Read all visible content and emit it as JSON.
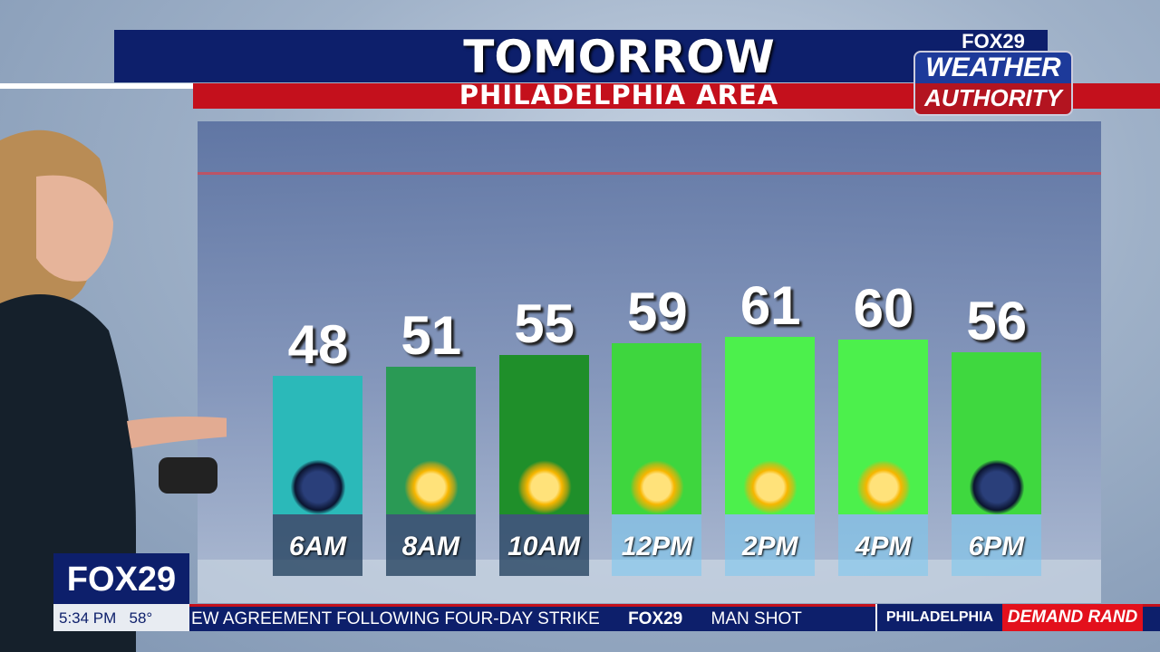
{
  "header": {
    "title": "TOMORROW",
    "subtitle": "PHILADELPHIA AREA"
  },
  "logo": {
    "brand": "FOX29",
    "line1": "WEATHER",
    "line2": "AUTHORITY"
  },
  "chart_data": {
    "type": "bar",
    "categories": [
      "6AM",
      "8AM",
      "10AM",
      "12PM",
      "2PM",
      "4PM",
      "6PM"
    ],
    "values": [
      48,
      51,
      55,
      59,
      61,
      60,
      56
    ],
    "icons": [
      "night-clear",
      "sunny",
      "sunny",
      "sunny",
      "sunny",
      "sunny",
      "night-clear"
    ],
    "colors": [
      "#2bb9b9",
      "#2a9a55",
      "#1f8f2a",
      "#3ed63e",
      "#4cf04c",
      "#4cf04c",
      "#3fd83f"
    ]
  },
  "station": {
    "logo": "FOX29",
    "time": "5:34 PM",
    "temp": "58°"
  },
  "ticker": {
    "text": "EW AGREEMENT  FOLLOWING  FOUR-DAY  STRIKE",
    "brand": "FOX29",
    "text2": "MAN  SHOT",
    "location": "PHILADELPHIA",
    "promo": "DEMAND  RAND"
  }
}
